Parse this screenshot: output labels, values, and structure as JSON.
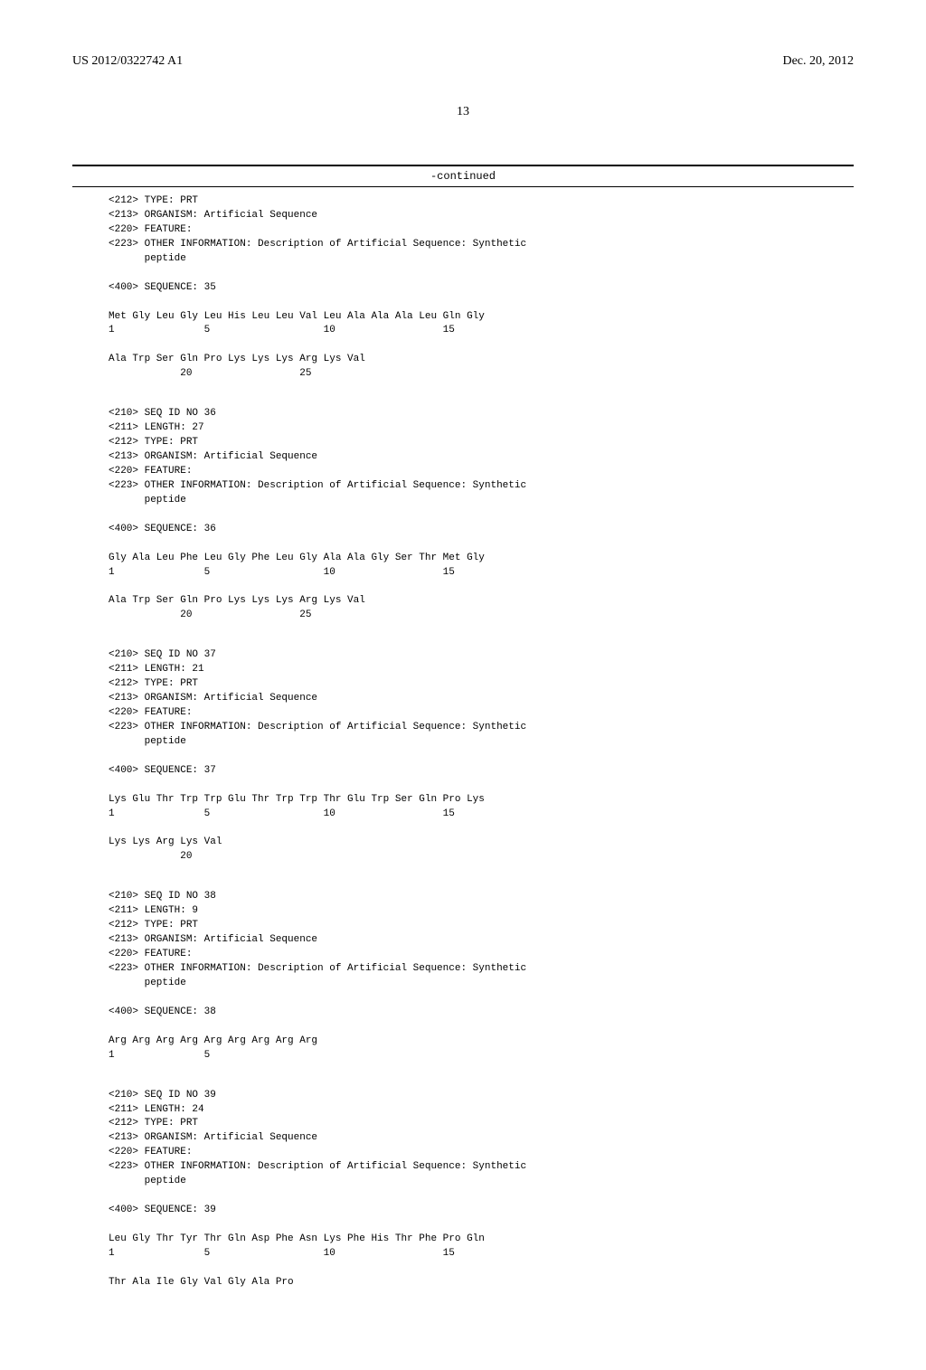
{
  "header": {
    "pub_number": "US 2012/0322742 A1",
    "pub_date": "Dec. 20, 2012"
  },
  "page_number": "13",
  "continued_label": "-continued",
  "sequences": [
    {
      "meta": "<212> TYPE: PRT\n<213> ORGANISM: Artificial Sequence\n<220> FEATURE:\n<223> OTHER INFORMATION: Description of Artificial Sequence: Synthetic\n      peptide\n\n<400> SEQUENCE: 35\n\nMet Gly Leu Gly Leu His Leu Leu Val Leu Ala Ala Ala Leu Gln Gly\n1               5                   10                  15\n\nAla Trp Ser Gln Pro Lys Lys Lys Arg Lys Val\n            20                  25"
    },
    {
      "meta": "<210> SEQ ID NO 36\n<211> LENGTH: 27\n<212> TYPE: PRT\n<213> ORGANISM: Artificial Sequence\n<220> FEATURE:\n<223> OTHER INFORMATION: Description of Artificial Sequence: Synthetic\n      peptide\n\n<400> SEQUENCE: 36\n\nGly Ala Leu Phe Leu Gly Phe Leu Gly Ala Ala Gly Ser Thr Met Gly\n1               5                   10                  15\n\nAla Trp Ser Gln Pro Lys Lys Lys Arg Lys Val\n            20                  25"
    },
    {
      "meta": "<210> SEQ ID NO 37\n<211> LENGTH: 21\n<212> TYPE: PRT\n<213> ORGANISM: Artificial Sequence\n<220> FEATURE:\n<223> OTHER INFORMATION: Description of Artificial Sequence: Synthetic\n      peptide\n\n<400> SEQUENCE: 37\n\nLys Glu Thr Trp Trp Glu Thr Trp Trp Thr Glu Trp Ser Gln Pro Lys\n1               5                   10                  15\n\nLys Lys Arg Lys Val\n            20"
    },
    {
      "meta": "<210> SEQ ID NO 38\n<211> LENGTH: 9\n<212> TYPE: PRT\n<213> ORGANISM: Artificial Sequence\n<220> FEATURE:\n<223> OTHER INFORMATION: Description of Artificial Sequence: Synthetic\n      peptide\n\n<400> SEQUENCE: 38\n\nArg Arg Arg Arg Arg Arg Arg Arg Arg\n1               5"
    },
    {
      "meta": "<210> SEQ ID NO 39\n<211> LENGTH: 24\n<212> TYPE: PRT\n<213> ORGANISM: Artificial Sequence\n<220> FEATURE:\n<223> OTHER INFORMATION: Description of Artificial Sequence: Synthetic\n      peptide\n\n<400> SEQUENCE: 39\n\nLeu Gly Thr Tyr Thr Gln Asp Phe Asn Lys Phe His Thr Phe Pro Gln\n1               5                   10                  15\n\nThr Ala Ile Gly Val Gly Ala Pro"
    }
  ]
}
